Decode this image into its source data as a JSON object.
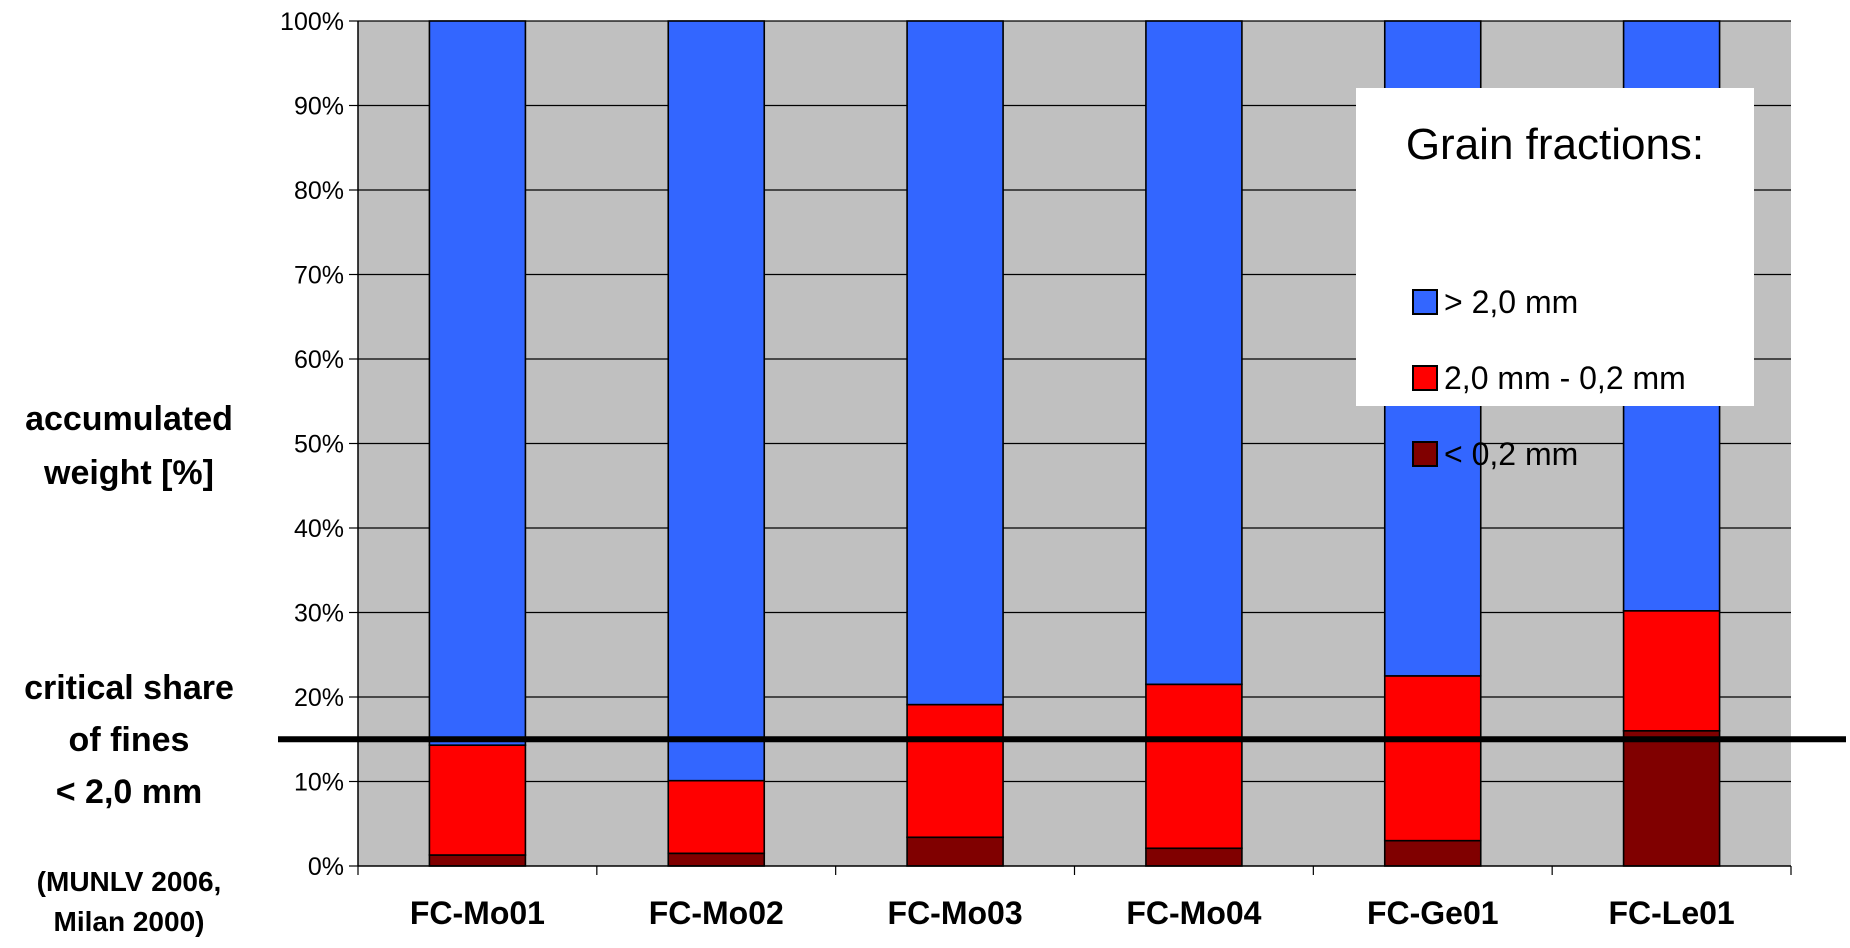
{
  "chart_data": {
    "type": "bar",
    "stacked": true,
    "categories": [
      "FC-Mo01",
      "FC-Mo02",
      "FC-Mo03",
      "FC-Mo04",
      "FC-Ge01",
      "FC-Le01"
    ],
    "series": [
      {
        "name": "< 0,2 mm",
        "color": "#800000",
        "values": [
          1.3,
          1.5,
          3.4,
          2.1,
          3.0,
          16.0
        ]
      },
      {
        "name": "2,0 mm - 0,2 mm",
        "color": "#ff0000",
        "values": [
          13.0,
          8.6,
          15.7,
          19.4,
          19.5,
          14.2
        ]
      },
      {
        "name": "> 2,0 mm",
        "color": "#3366ff",
        "values": [
          85.7,
          89.9,
          80.9,
          78.5,
          77.5,
          69.8
        ]
      }
    ],
    "y_ticks": [
      "0%",
      "10%",
      "20%",
      "30%",
      "40%",
      "50%",
      "60%",
      "70%",
      "80%",
      "90%",
      "100%"
    ],
    "ylim": [
      0,
      100
    ],
    "grid": true,
    "plot_background": "#c0c0c0",
    "ylabel_lines": [
      "accumulated",
      "weight [%]"
    ],
    "reference_line": {
      "value": 15,
      "color": "#000000",
      "label_lines": [
        "critical share",
        "of fines",
        "< 2,0 mm"
      ],
      "source_lines": [
        "(MUNLV 2006,",
        "Milan 2000)"
      ]
    },
    "legend": {
      "title": "Grain fractions:",
      "placement": "top-right",
      "items": [
        {
          "label": "> 2,0 mm",
          "color": "#3366ff"
        },
        {
          "label": "2,0 mm - 0,2 mm",
          "color": "#ff0000"
        },
        {
          "label": "< 0,2 mm",
          "color": "#800000"
        }
      ]
    }
  }
}
